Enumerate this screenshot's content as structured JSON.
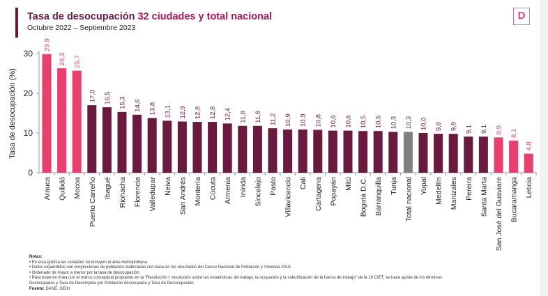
{
  "header": {
    "title_part1": "Tasa de desocupación",
    "title_part2": "32 ciudades y total nacional",
    "subtitle": "Octubre 2022 – Septiembre 2023",
    "logo": "D"
  },
  "colors": {
    "highlight": "#ea3e6e",
    "city": "#6b1a3f",
    "national": "#808080",
    "title": "#6b1a3f"
  },
  "chart_data": {
    "type": "bar",
    "ylabel": "Tasa de desocupación (%)",
    "ylim": [
      0,
      30
    ],
    "yticks": [
      0,
      10,
      20,
      30
    ],
    "grid": false,
    "categories": [
      "Arauca",
      "Quibdó",
      "Mocoa",
      "Puerto Carreño",
      "Ibagué",
      "Riohacha",
      "Florencia",
      "Valledupar",
      "Neiva",
      "San Andrés",
      "Montería",
      "Cúcuta",
      "Armenia",
      "Inírida",
      "Sincelejo",
      "Pasto",
      "Villavicencio",
      "Cali",
      "Cartagena",
      "Popayán",
      "Mitú",
      "Bogotá D.C.",
      "Barranquilla",
      "Tunja",
      "Total nacional",
      "Yopal",
      "Medellín",
      "Manizales",
      "Pereira",
      "Santa Marta",
      "San José del Guaviare",
      "Bucaramanga",
      "Leticia"
    ],
    "values": [
      29.9,
      26.3,
      25.7,
      17.0,
      16.5,
      15.3,
      14.6,
      13.8,
      13.1,
      12.9,
      12.8,
      12.8,
      12.4,
      11.8,
      11.8,
      11.2,
      10.9,
      10.9,
      10.8,
      10.6,
      10.6,
      10.5,
      10.5,
      10.3,
      10.3,
      10.0,
      9.8,
      9.8,
      9.1,
      9.1,
      8.9,
      8.1,
      4.8
    ],
    "labels": [
      "29,9",
      "26,3",
      "25,7",
      "17,0",
      "16,5",
      "15,3",
      "14,6",
      "13,8",
      "13,1",
      "12,9",
      "12,8",
      "12,8",
      "12,4",
      "11,8",
      "11,8",
      "11,2",
      "10,9",
      "10,9",
      "10,8",
      "10,6",
      "10,6",
      "10,5",
      "10,5",
      "10,3",
      "10,3",
      "10,0",
      "9,8",
      "9,8",
      "9,1",
      "9,1",
      "8,9",
      "8,1",
      "4,8"
    ],
    "groups": [
      "highlight",
      "highlight",
      "highlight",
      "city",
      "city",
      "city",
      "city",
      "city",
      "city",
      "city",
      "city",
      "city",
      "city",
      "city",
      "city",
      "city",
      "city",
      "city",
      "city",
      "city",
      "city",
      "city",
      "city",
      "city",
      "national",
      "city",
      "city",
      "city",
      "city",
      "city",
      "highlight",
      "highlight",
      "highlight"
    ]
  },
  "notes": {
    "heading": "Notas:",
    "items": [
      "• En esta gráfica las ciudades no incluyen el área metropolitana.",
      "• Datos expandidos con proyecciones de población elaboradas con base en los resultados del Censo Nacional de Población y Vivienda 2018.",
      "• Ordenado de mayor a menor por la tasa de desocupación.",
      "• Para estar en línea con el marco conceptual propuesto en la \"Resolución I: resolución sobre las estadísticas del trabajo, la ocupación y la subutilización de la fuerza de trabajo\" de la 19 CIET, se hace ajuste de los términos Desocupados y Tasa de Desempleo por Población desocupada y Tasa de Desocupación."
    ],
    "source_label": "Fuente:",
    "source": "DANE, GEIH"
  }
}
